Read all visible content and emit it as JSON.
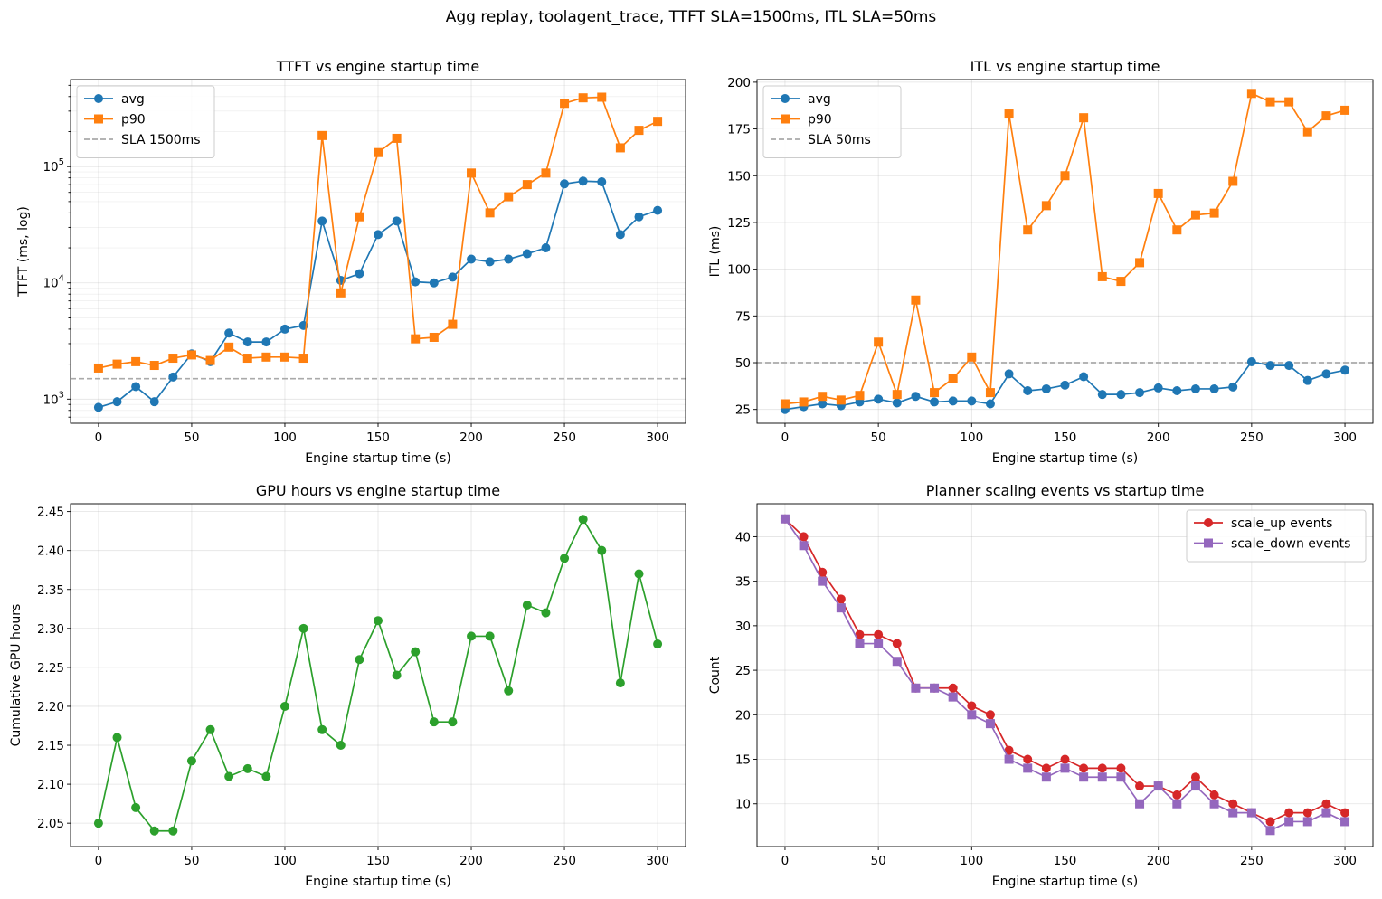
{
  "figure_title": "Agg replay, toolagent_trace, TTFT SLA=1500ms, ITL SLA=50ms",
  "colors": {
    "blue": "#1f77b4",
    "orange": "#ff7f0e",
    "green": "#2ca02c",
    "red": "#d62728",
    "purple": "#9467bd",
    "sla": "#aaaaaa"
  },
  "chart_data": [
    {
      "id": "ttft",
      "type": "line",
      "title": "TTFT vs engine startup time",
      "xlabel": "Engine startup time (s)",
      "ylabel": "TTFT (ms, log)",
      "yscale": "log",
      "xlim": [
        -15,
        315
      ],
      "ylim": [
        620,
        560000
      ],
      "xticks": [
        0,
        50,
        100,
        150,
        200,
        250,
        300
      ],
      "yticks": [
        1000,
        10000,
        100000
      ],
      "ytick_labels": [
        "10^3",
        "10^4",
        "10^5"
      ],
      "legend_loc": "upper-left",
      "x": [
        0,
        10,
        20,
        30,
        40,
        50,
        60,
        70,
        80,
        90,
        100,
        110,
        120,
        130,
        140,
        150,
        160,
        170,
        180,
        190,
        200,
        210,
        220,
        230,
        240,
        250,
        260,
        270,
        280,
        290,
        300
      ],
      "series": [
        {
          "name": "avg",
          "color": "blue",
          "marker": "circle",
          "values": [
            850,
            950,
            1280,
            950,
            1550,
            2450,
            2100,
            3700,
            3100,
            3100,
            4000,
            4300,
            34000,
            10500,
            12000,
            26000,
            34000,
            10200,
            10000,
            11200,
            16000,
            15200,
            16000,
            17800,
            20000,
            71000,
            75000,
            74000,
            26000,
            37000,
            42000
          ]
        },
        {
          "name": "p90",
          "color": "orange",
          "marker": "square",
          "values": [
            1850,
            2000,
            2100,
            1950,
            2250,
            2400,
            2150,
            2800,
            2250,
            2300,
            2300,
            2250,
            185000,
            8200,
            37000,
            132000,
            175000,
            3300,
            3400,
            4400,
            88000,
            40000,
            55000,
            70000,
            88000,
            350000,
            390000,
            395000,
            145000,
            205000,
            245000
          ]
        }
      ],
      "sla": {
        "name": "SLA 1500ms",
        "value": 1500
      }
    },
    {
      "id": "itl",
      "type": "line",
      "title": "ITL vs engine startup time",
      "xlabel": "Engine startup time (s)",
      "ylabel": "ITL (ms)",
      "xlim": [
        -15,
        315
      ],
      "ylim": [
        17.6,
        201.4
      ],
      "xticks": [
        0,
        50,
        100,
        150,
        200,
        250,
        300
      ],
      "yticks": [
        25,
        50,
        75,
        100,
        125,
        150,
        175,
        200
      ],
      "legend_loc": "upper-left",
      "x": [
        0,
        10,
        20,
        30,
        40,
        50,
        60,
        70,
        80,
        90,
        100,
        110,
        120,
        130,
        140,
        150,
        160,
        170,
        180,
        190,
        200,
        210,
        220,
        230,
        240,
        250,
        260,
        270,
        280,
        290,
        300
      ],
      "series": [
        {
          "name": "avg",
          "color": "blue",
          "marker": "circle",
          "values": [
            25,
            26.5,
            28,
            27,
            29,
            30.5,
            28.5,
            32,
            29,
            29.5,
            29.5,
            28,
            44,
            35,
            36,
            38,
            42.5,
            33,
            33,
            34,
            36.5,
            35,
            36,
            36,
            37,
            50.5,
            48.5,
            48.5,
            40.5,
            44,
            46
          ]
        },
        {
          "name": "p90",
          "color": "orange",
          "marker": "square",
          "values": [
            28,
            29,
            32,
            30,
            32.5,
            61,
            33,
            83.5,
            34,
            41.5,
            53,
            34,
            183,
            121,
            134,
            150,
            181,
            96,
            93.5,
            103.5,
            140.5,
            121,
            129,
            130,
            147,
            194,
            189.5,
            189.5,
            173.5,
            182,
            185
          ]
        }
      ],
      "sla": {
        "name": "SLA 50ms",
        "value": 50
      }
    },
    {
      "id": "gpu",
      "type": "line",
      "title": "GPU hours vs engine startup time",
      "xlabel": "Engine startup time (s)",
      "ylabel": "Cumulative GPU hours",
      "xlim": [
        -15,
        315
      ],
      "ylim": [
        2.02,
        2.46
      ],
      "xticks": [
        0,
        50,
        100,
        150,
        200,
        250,
        300
      ],
      "yticks": [
        2.05,
        2.1,
        2.15,
        2.2,
        2.25,
        2.3,
        2.35,
        2.4,
        2.45
      ],
      "ytick_labels": [
        "2.05",
        "2.10",
        "2.15",
        "2.20",
        "2.25",
        "2.30",
        "2.35",
        "2.40",
        "2.45"
      ],
      "x": [
        0,
        10,
        20,
        30,
        40,
        50,
        60,
        70,
        80,
        90,
        100,
        110,
        120,
        130,
        140,
        150,
        160,
        170,
        180,
        190,
        200,
        210,
        220,
        230,
        240,
        250,
        260,
        270,
        280,
        290,
        300
      ],
      "series": [
        {
          "name": "GPU hours",
          "color": "green",
          "marker": "circle",
          "values": [
            2.05,
            2.16,
            2.07,
            2.04,
            2.04,
            2.13,
            2.17,
            2.11,
            2.12,
            2.11,
            2.2,
            2.3,
            2.17,
            2.15,
            2.26,
            2.31,
            2.24,
            2.27,
            2.18,
            2.18,
            2.29,
            2.29,
            2.22,
            2.33,
            2.32,
            2.39,
            2.44,
            2.4,
            2.23,
            2.37,
            2.28
          ]
        }
      ]
    },
    {
      "id": "events",
      "type": "line",
      "title": "Planner scaling events vs startup time",
      "xlabel": "Engine startup time (s)",
      "ylabel": "Count",
      "xlim": [
        -15,
        315
      ],
      "ylim": [
        5.2,
        43.7
      ],
      "xticks": [
        0,
        50,
        100,
        150,
        200,
        250,
        300
      ],
      "yticks": [
        10,
        15,
        20,
        25,
        30,
        35,
        40
      ],
      "legend_loc": "upper-right",
      "x": [
        0,
        10,
        20,
        30,
        40,
        50,
        60,
        70,
        80,
        90,
        100,
        110,
        120,
        130,
        140,
        150,
        160,
        170,
        180,
        190,
        200,
        210,
        220,
        230,
        240,
        250,
        260,
        270,
        280,
        290,
        300
      ],
      "series": [
        {
          "name": "scale_up events",
          "color": "red",
          "marker": "circle",
          "values": [
            42,
            40,
            36,
            33,
            29,
            29,
            28,
            23,
            23,
            23,
            21,
            20,
            16,
            15,
            14,
            15,
            14,
            14,
            14,
            12,
            12,
            11,
            13,
            11,
            10,
            9,
            8,
            9,
            9,
            10,
            9
          ]
        },
        {
          "name": "scale_down events",
          "color": "purple",
          "marker": "square",
          "values": [
            42,
            39,
            35,
            32,
            28,
            28,
            26,
            23,
            23,
            22,
            20,
            19,
            15,
            14,
            13,
            14,
            13,
            13,
            13,
            10,
            12,
            10,
            12,
            10,
            9,
            9,
            7,
            8,
            8,
            9,
            8
          ]
        }
      ]
    }
  ]
}
